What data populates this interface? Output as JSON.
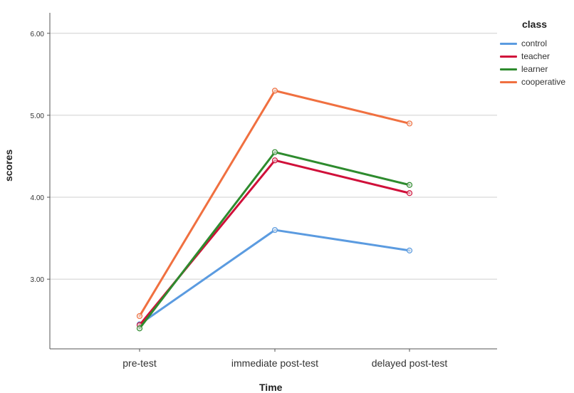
{
  "chart_data": {
    "type": "line",
    "categories": [
      "pre-test",
      "immediate post-test",
      "delayed post-test"
    ],
    "series": [
      {
        "name": "control",
        "values": [
          2.45,
          3.6,
          3.35
        ],
        "color": "#5b9be0"
      },
      {
        "name": "teacher",
        "values": [
          2.44,
          4.45,
          4.05
        ],
        "color": "#d0103a"
      },
      {
        "name": "learner",
        "values": [
          2.4,
          4.55,
          4.15
        ],
        "color": "#2e8b2e"
      },
      {
        "name": "cooperative",
        "values": [
          2.55,
          5.3,
          4.9
        ],
        "color": "#f07040"
      }
    ],
    "legend_title": "class",
    "legend_position": "top-right",
    "xlabel": "Time",
    "ylabel": "scores",
    "y_ticks": [
      "3.00",
      "4.00",
      "5.00",
      "6.00"
    ],
    "ylim": [
      2.15,
      6.25
    ],
    "grid": true
  }
}
